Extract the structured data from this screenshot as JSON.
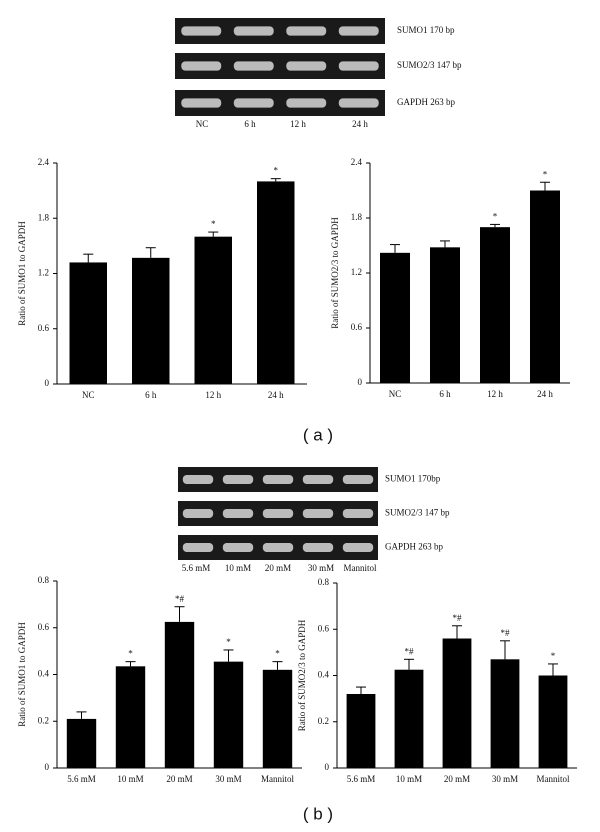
{
  "panel_labels": [
    "( a )",
    "( b )"
  ],
  "gels": [
    {
      "bands": [
        "SUMO1 170 bp",
        "SUMO2/3 147 bp",
        "GAPDH 263 bp"
      ],
      "lanes": [
        "NC",
        "6 h",
        "12 h",
        "24 h"
      ]
    },
    {
      "bands": [
        "SUMO1 170bp",
        "SUMO2/3 147 bp",
        "GAPDH 263 bp"
      ],
      "lanes": [
        "5.6 mM",
        "10 mM",
        "20 mM",
        "30 mM",
        "Mannitol"
      ]
    }
  ],
  "chart_data": [
    {
      "type": "bar",
      "y_label": "Ratio of SUMO1 to GAPDH",
      "color": "#000000",
      "categories": [
        "NC",
        "6 h",
        "12 h",
        "24 h"
      ],
      "values": [
        1.32,
        1.37,
        1.6,
        2.2
      ],
      "errors": [
        0.09,
        0.11,
        0.05,
        0.03
      ],
      "annotations": [
        null,
        null,
        "*",
        "*"
      ],
      "ylim": [
        0,
        2.4
      ],
      "yticks": [
        0,
        0.6,
        1.2,
        1.8,
        2.4
      ]
    },
    {
      "type": "bar",
      "y_label": "Ratio of SUMO2/3 to GAPDH",
      "color": "#000000",
      "categories": [
        "NC",
        "6 h",
        "12 h",
        "24 h"
      ],
      "values": [
        1.42,
        1.48,
        1.7,
        2.1
      ],
      "errors": [
        0.09,
        0.07,
        0.03,
        0.09
      ],
      "annotations": [
        null,
        null,
        "*",
        "*"
      ],
      "ylim": [
        0,
        2.4
      ],
      "yticks": [
        0,
        0.6,
        1.2,
        1.8,
        2.4
      ]
    },
    {
      "type": "bar",
      "y_label": "Ratio of SUMO1 to GAPDH",
      "color": "#000000",
      "categories": [
        "5.6 mM",
        "10 mM",
        "20 mM",
        "30 mM",
        "Mannitol"
      ],
      "values": [
        0.21,
        0.435,
        0.625,
        0.455,
        0.42
      ],
      "errors": [
        0.03,
        0.02,
        0.065,
        0.05,
        0.035
      ],
      "annotations": [
        null,
        "*",
        "*#",
        "*",
        "*"
      ],
      "ylim": [
        0,
        0.8
      ],
      "yticks": [
        0,
        0.2,
        0.4,
        0.6,
        0.8
      ]
    },
    {
      "type": "bar",
      "y_label": "Ratio of SUMO2/3 to GAPDH",
      "color": "#000000",
      "categories": [
        "5.6 mM",
        "10 mM",
        "20 mM",
        "30 mM",
        "Mannitol"
      ],
      "values": [
        0.32,
        0.425,
        0.56,
        0.47,
        0.4
      ],
      "errors": [
        0.03,
        0.045,
        0.055,
        0.08,
        0.05
      ],
      "annotations": [
        null,
        "*#",
        "*#",
        "*#",
        "*"
      ],
      "ylim": [
        0,
        0.8
      ],
      "yticks": [
        0,
        0.2,
        0.4,
        0.6,
        0.8
      ]
    }
  ]
}
